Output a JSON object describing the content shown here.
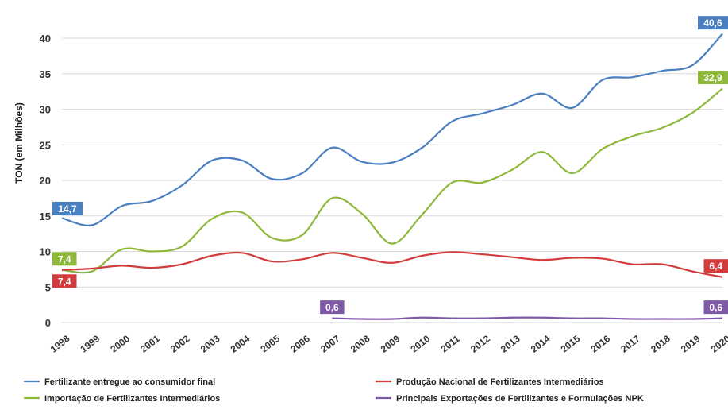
{
  "chart_data": {
    "type": "line",
    "title": "",
    "ylabel": "TON (em Milhões)",
    "xlabel": "",
    "ylim": [
      0,
      40
    ],
    "yticks": [
      "0",
      "5",
      "10",
      "15",
      "20",
      "25",
      "30",
      "35",
      "40"
    ],
    "grid": true,
    "legend_position": "bottom",
    "categories": [
      "1998",
      "1999",
      "2000",
      "2001",
      "2002",
      "2003",
      "2004",
      "2005",
      "2006",
      "2007",
      "2008",
      "2009",
      "2010",
      "2011",
      "2012",
      "2013",
      "2014",
      "2015",
      "2016",
      "2017",
      "2018",
      "2019",
      "2020"
    ],
    "series": [
      {
        "name": "Fertilizante entregue ao consumidor final",
        "color": "#4a7fc1",
        "values": [
          14.7,
          13.7,
          16.4,
          17.1,
          19.3,
          22.8,
          22.8,
          20.2,
          21.0,
          24.6,
          22.6,
          22.5,
          24.6,
          28.3,
          29.4,
          30.6,
          32.2,
          30.2,
          34.1,
          34.5,
          35.4,
          36.2,
          40.6
        ],
        "labels": [
          {
            "index": 0,
            "text": "14,7"
          },
          {
            "index": 22,
            "text": "40,6"
          }
        ]
      },
      {
        "name": "Importação de Fertilizantes Intermediários",
        "color": "#8db83a",
        "values": [
          7.4,
          7.2,
          10.3,
          10.0,
          10.7,
          14.6,
          15.5,
          11.9,
          12.3,
          17.5,
          15.3,
          11.1,
          15.2,
          19.7,
          19.7,
          21.5,
          24.0,
          21.0,
          24.4,
          26.2,
          27.4,
          29.5,
          32.9
        ],
        "labels": [
          {
            "index": 0,
            "text": "7,4"
          },
          {
            "index": 22,
            "text": "32,9"
          }
        ]
      },
      {
        "name": "Produção Nacional de Fertilizantes Intermediários",
        "color": "#d23c3c",
        "values": [
          7.4,
          7.6,
          8.0,
          7.7,
          8.2,
          9.4,
          9.8,
          8.6,
          8.9,
          9.8,
          9.1,
          8.4,
          9.4,
          9.9,
          9.6,
          9.2,
          8.8,
          9.1,
          9.0,
          8.2,
          8.2,
          7.2,
          6.4
        ],
        "labels": [
          {
            "index": 0,
            "text": "7,4"
          },
          {
            "index": 22,
            "text": "6,4"
          }
        ]
      },
      {
        "name": "Principais Exportações de Fertilizantes e Formulações NPK",
        "color": "#7e5aa6",
        "values": [
          null,
          null,
          null,
          null,
          null,
          null,
          null,
          null,
          null,
          0.6,
          0.5,
          0.5,
          0.7,
          0.6,
          0.6,
          0.7,
          0.7,
          0.6,
          0.6,
          0.5,
          0.5,
          0.5,
          0.6
        ],
        "labels": [
          {
            "index": 9,
            "text": "0,6"
          },
          {
            "index": 22,
            "text": "0,6"
          }
        ]
      }
    ],
    "legend": [
      {
        "series": 0,
        "text": "Fertilizante entregue ao consumidor final"
      },
      {
        "series": 2,
        "text": "Produção Nacional de Fertilizantes Intermediários"
      },
      {
        "series": 1,
        "text": "Importação de Fertilizantes Intermediários"
      },
      {
        "series": 3,
        "text": "Principais Exportações de Fertilizantes e Formulações NPK"
      }
    ]
  }
}
